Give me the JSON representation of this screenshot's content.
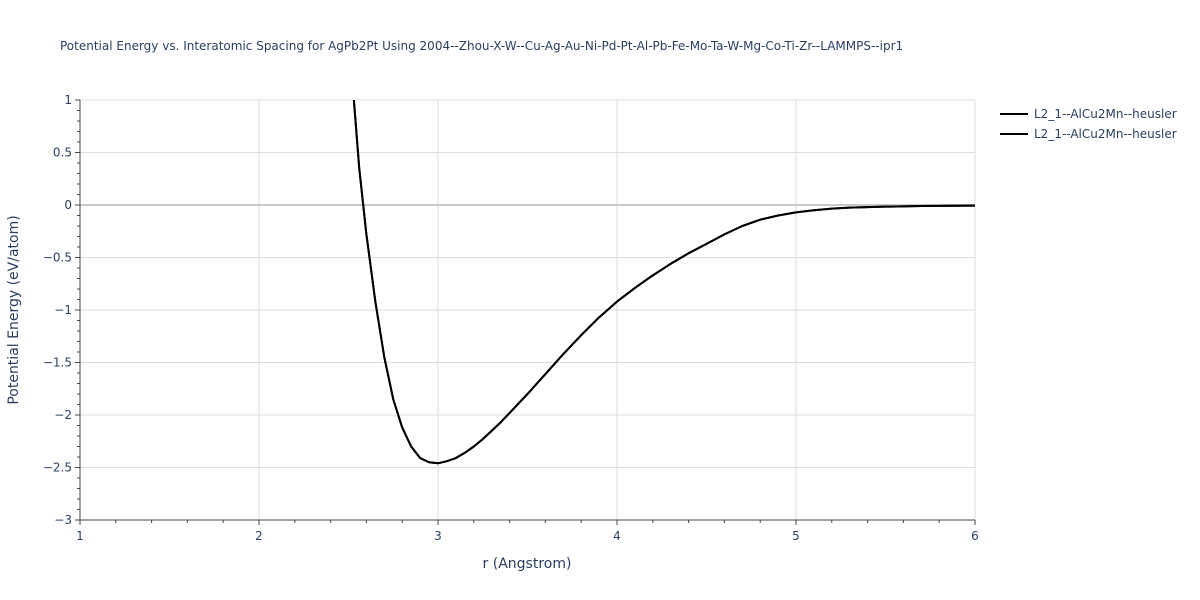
{
  "chart_data": {
    "type": "line",
    "title": "Potential Energy vs. Interatomic Spacing for AgPb2Pt Using 2004--Zhou-X-W--Cu-Ag-Au-Ni-Pd-Pt-Al-Pb-Fe-Mo-Ta-W-Mg-Co-Ti-Zr--LAMMPS--ipr1",
    "xlabel": "r (Angstrom)",
    "ylabel": "Potential Energy (eV/atom)",
    "xlim": [
      1,
      6
    ],
    "ylim": [
      -3,
      1
    ],
    "x_ticks": [
      1,
      2,
      3,
      4,
      5,
      6
    ],
    "x_tick_labels": [
      "1",
      "2",
      "3",
      "4",
      "5",
      "6"
    ],
    "y_ticks": [
      1,
      0.5,
      0,
      -0.5,
      -1,
      -1.5,
      -2,
      -2.5,
      -3
    ],
    "y_tick_labels": [
      "1",
      "0.5",
      "0",
      "−0.5",
      "−1",
      "−1.5",
      "−2",
      "−2.5",
      "−3"
    ],
    "grid": true,
    "legend_position": "top-right",
    "series": [
      {
        "name": "L2_1--AlCu2Mn--heusler",
        "color": "#000000",
        "x": [
          2.53,
          2.56,
          2.6,
          2.65,
          2.7,
          2.75,
          2.8,
          2.85,
          2.9,
          2.95,
          3.0,
          3.05,
          3.1,
          3.15,
          3.2,
          3.25,
          3.3,
          3.35,
          3.4,
          3.5,
          3.6,
          3.7,
          3.8,
          3.9,
          4.0,
          4.1,
          4.2,
          4.3,
          4.4,
          4.5,
          4.6,
          4.7,
          4.8,
          4.9,
          5.0,
          5.1,
          5.2,
          5.3,
          5.4,
          5.5,
          5.6,
          5.7,
          5.8,
          5.9,
          6.0
        ],
        "y": [
          1.0,
          0.35,
          -0.28,
          -0.92,
          -1.45,
          -1.85,
          -2.12,
          -2.3,
          -2.41,
          -2.45,
          -2.46,
          -2.44,
          -2.41,
          -2.36,
          -2.3,
          -2.23,
          -2.15,
          -2.07,
          -1.98,
          -1.8,
          -1.61,
          -1.42,
          -1.24,
          -1.07,
          -0.92,
          -0.79,
          -0.67,
          -0.56,
          -0.46,
          -0.37,
          -0.28,
          -0.2,
          -0.14,
          -0.1,
          -0.07,
          -0.05,
          -0.035,
          -0.025,
          -0.02,
          -0.016,
          -0.013,
          -0.01,
          -0.008,
          -0.007,
          -0.006
        ]
      },
      {
        "name": "L2_1--AlCu2Mn--heusler",
        "color": "#000000",
        "x": [
          2.53,
          2.56,
          2.6,
          2.65,
          2.7,
          2.75,
          2.8,
          2.85,
          2.9,
          2.95,
          3.0,
          3.05,
          3.1,
          3.15,
          3.2,
          3.25,
          3.3,
          3.35,
          3.4,
          3.5,
          3.6,
          3.7,
          3.8,
          3.9,
          4.0,
          4.1,
          4.2,
          4.3,
          4.4,
          4.5,
          4.6,
          4.7,
          4.8,
          4.9,
          5.0,
          5.1,
          5.2,
          5.3,
          5.4,
          5.5,
          5.6,
          5.7,
          5.8,
          5.9,
          6.0
        ],
        "y": [
          1.0,
          0.35,
          -0.28,
          -0.92,
          -1.45,
          -1.85,
          -2.12,
          -2.3,
          -2.41,
          -2.45,
          -2.46,
          -2.44,
          -2.41,
          -2.36,
          -2.3,
          -2.23,
          -2.15,
          -2.07,
          -1.98,
          -1.8,
          -1.61,
          -1.42,
          -1.24,
          -1.07,
          -0.92,
          -0.79,
          -0.67,
          -0.56,
          -0.46,
          -0.37,
          -0.28,
          -0.2,
          -0.14,
          -0.1,
          -0.07,
          -0.05,
          -0.035,
          -0.025,
          -0.02,
          -0.016,
          -0.013,
          -0.01,
          -0.008,
          -0.007,
          -0.006
        ]
      }
    ]
  }
}
